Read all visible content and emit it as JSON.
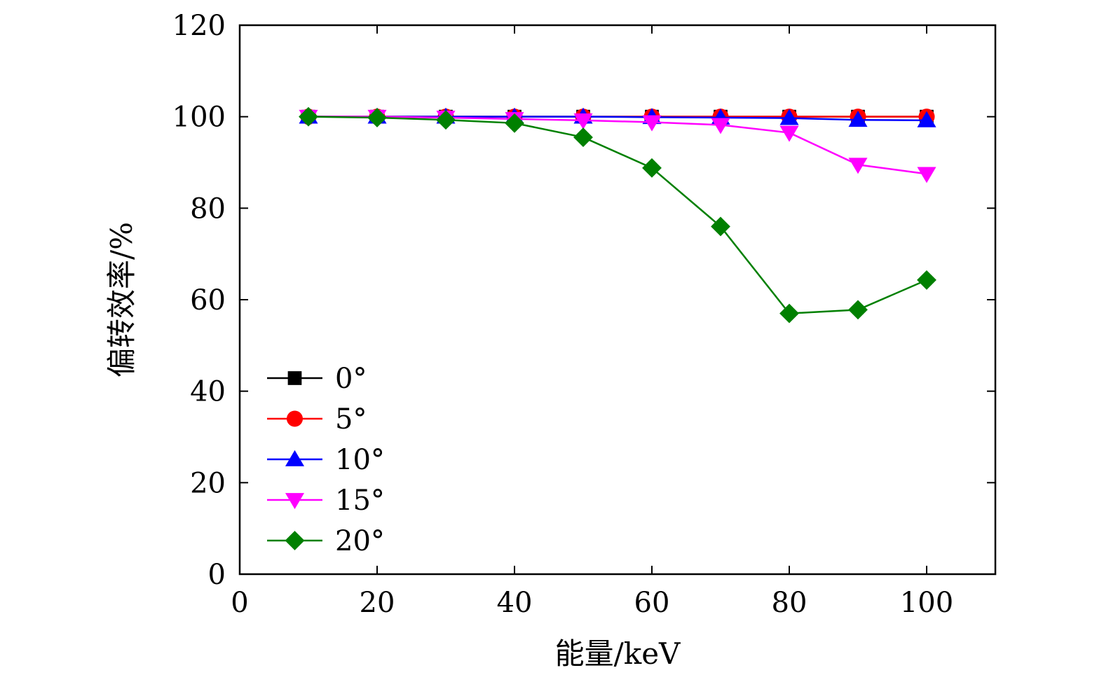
{
  "chart_data": {
    "type": "line",
    "title": "",
    "xlabel": "能量/keV",
    "ylabel": "偏转效率/%",
    "xlim": [
      0,
      110
    ],
    "ylim": [
      0,
      120
    ],
    "xticks": [
      0,
      20,
      40,
      60,
      80,
      100
    ],
    "yticks": [
      0,
      20,
      40,
      60,
      80,
      100,
      120
    ],
    "x": [
      10,
      20,
      30,
      40,
      50,
      60,
      70,
      80,
      90,
      100
    ],
    "grid": false,
    "legend_position": "bottom-left",
    "series": [
      {
        "name": "0°",
        "color": "#000000",
        "marker": "square",
        "values": [
          100,
          100,
          100,
          100,
          100,
          100,
          100,
          100,
          100,
          100
        ]
      },
      {
        "name": "5°",
        "color": "#ff0000",
        "marker": "circle",
        "values": [
          100,
          100,
          100,
          100,
          100,
          100,
          100,
          100,
          100,
          100
        ]
      },
      {
        "name": "10°",
        "color": "#0000ff",
        "marker": "triangle-up",
        "values": [
          100,
          100,
          100,
          100,
          100,
          99.9,
          99.8,
          99.7,
          99.3,
          99.2
        ]
      },
      {
        "name": "15°",
        "color": "#ff00ff",
        "marker": "triangle-down",
        "values": [
          100,
          100,
          99.8,
          99.5,
          99.2,
          98.8,
          98.2,
          96.5,
          89.5,
          87.5
        ]
      },
      {
        "name": "20°",
        "color": "#008000",
        "marker": "diamond",
        "values": [
          100,
          99.8,
          99.3,
          98.6,
          95.5,
          88.8,
          76,
          57,
          57.8,
          64.3
        ]
      }
    ]
  }
}
